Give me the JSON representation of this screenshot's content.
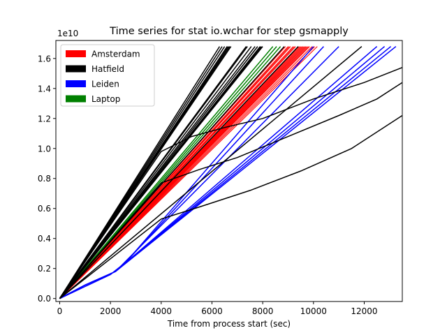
{
  "chart_data": {
    "type": "line",
    "title": "Time series for stat io.wchar for step gsmapply",
    "xlabel": "Time from process start (sec)",
    "ylabel": "",
    "y_scale_note": "1e10",
    "xlim": [
      -150,
      13500
    ],
    "ylim": [
      -0.02,
      1.72
    ],
    "x_ticks": [
      0,
      2000,
      4000,
      6000,
      8000,
      10000,
      12000
    ],
    "x_tick_labels": [
      "0",
      "2000",
      "4000",
      "6000",
      "8000",
      "10000",
      "12000"
    ],
    "y_ticks": [
      0.0,
      0.2,
      0.4,
      0.6,
      0.8,
      1.0,
      1.2,
      1.4,
      1.6
    ],
    "y_tick_labels": [
      "0.0",
      "0.2",
      "0.4",
      "0.6",
      "0.8",
      "1.0",
      "1.2",
      "1.4",
      "1.6"
    ],
    "legend_position": "top-left",
    "legend": [
      {
        "label": "Amsterdam",
        "color": "#ff0000"
      },
      {
        "label": "Hatfield",
        "color": "#000000"
      },
      {
        "label": "Leiden",
        "color": "#0000ff"
      },
      {
        "label": "Laptop",
        "color": "#008000"
      }
    ],
    "groups": [
      {
        "name": "Amsterdam",
        "color": "#ff0000",
        "lines": [
          [
            [
              0,
              0
            ],
            [
              8900,
              1.68
            ]
          ],
          [
            [
              0,
              0
            ],
            [
              9000,
              1.68
            ]
          ],
          [
            [
              0,
              0
            ],
            [
              9100,
              1.68
            ]
          ],
          [
            [
              0,
              0
            ],
            [
              9200,
              1.68
            ]
          ],
          [
            [
              0,
              0
            ],
            [
              9300,
              1.68
            ]
          ],
          [
            [
              0,
              0
            ],
            [
              9400,
              1.68
            ]
          ],
          [
            [
              0,
              0
            ],
            [
              9500,
              1.68
            ]
          ],
          [
            [
              0,
              0
            ],
            [
              9600,
              1.68
            ]
          ],
          [
            [
              0,
              0
            ],
            [
              9700,
              1.68
            ]
          ],
          [
            [
              0,
              0
            ],
            [
              9800,
              1.68
            ]
          ],
          [
            [
              0,
              0
            ],
            [
              9850,
              1.68
            ]
          ],
          [
            [
              0,
              0
            ],
            [
              9950,
              1.68
            ]
          ],
          [
            [
              0,
              0
            ],
            [
              10050,
              1.68
            ]
          ],
          [
            [
              0,
              0
            ],
            [
              10150,
              1.68
            ]
          ],
          [
            [
              0,
              0
            ],
            [
              9250,
              1.68
            ]
          ],
          [
            [
              0,
              0
            ],
            [
              9550,
              1.68
            ]
          ],
          [
            [
              0,
              0
            ],
            [
              9050,
              1.68
            ]
          ],
          [
            [
              0,
              0
            ],
            [
              9650,
              1.68
            ]
          ],
          [
            [
              0,
              0
            ],
            [
              9750,
              1.68
            ]
          ],
          [
            [
              0,
              0
            ],
            [
              9450,
              1.68
            ]
          ]
        ]
      },
      {
        "name": "Laptop",
        "color": "#008000",
        "lines": [
          [
            [
              0,
              0
            ],
            [
              8400,
              1.68
            ]
          ],
          [
            [
              0,
              0
            ],
            [
              8550,
              1.68
            ]
          ],
          [
            [
              0,
              0
            ],
            [
              8700,
              1.68
            ]
          ]
        ]
      },
      {
        "name": "Leiden",
        "color": "#0000ff",
        "lines": [
          [
            [
              0,
              0
            ],
            [
              1000,
              0.08
            ],
            [
              2000,
              0.16
            ],
            [
              2600,
              0.24
            ],
            [
              10000,
              1.68
            ]
          ],
          [
            [
              0,
              0
            ],
            [
              1000,
              0.08
            ],
            [
              2000,
              0.16
            ],
            [
              2600,
              0.24
            ],
            [
              10400,
              1.68
            ]
          ],
          [
            [
              0,
              0
            ],
            [
              1000,
              0.09
            ],
            [
              2200,
              0.18
            ],
            [
              11000,
              1.68
            ]
          ],
          [
            [
              0,
              0
            ],
            [
              1000,
              0.09
            ],
            [
              2200,
              0.18
            ],
            [
              12500,
              1.68
            ]
          ],
          [
            [
              0,
              0
            ],
            [
              1000,
              0.09
            ],
            [
              2200,
              0.18
            ],
            [
              12800,
              1.68
            ]
          ],
          [
            [
              0,
              0
            ],
            [
              1000,
              0.09
            ],
            [
              2200,
              0.18
            ],
            [
              13050,
              1.68
            ]
          ],
          [
            [
              0,
              0
            ],
            [
              1000,
              0.09
            ],
            [
              2200,
              0.18
            ],
            [
              13250,
              1.68
            ]
          ]
        ]
      },
      {
        "name": "Hatfield",
        "color": "#000000",
        "lines": [
          [
            [
              0,
              0
            ],
            [
              6300,
              1.68
            ]
          ],
          [
            [
              0,
              0
            ],
            [
              6400,
              1.68
            ]
          ],
          [
            [
              0,
              0
            ],
            [
              6500,
              1.68
            ]
          ],
          [
            [
              0,
              0
            ],
            [
              6600,
              1.68
            ]
          ],
          [
            [
              0,
              0
            ],
            [
              6650,
              1.68
            ]
          ],
          [
            [
              0,
              0
            ],
            [
              6700,
              1.68
            ]
          ],
          [
            [
              0,
              0
            ],
            [
              6750,
              1.68
            ]
          ],
          [
            [
              0,
              0
            ],
            [
              7350,
              1.68
            ]
          ],
          [
            [
              0,
              0
            ],
            [
              7400,
              1.68
            ]
          ],
          [
            [
              0,
              0
            ],
            [
              7550,
              1.68
            ]
          ],
          [
            [
              0,
              0
            ],
            [
              7700,
              1.68
            ]
          ],
          [
            [
              0,
              0
            ],
            [
              7800,
              1.68
            ]
          ],
          [
            [
              0,
              0
            ],
            [
              7900,
              1.68
            ]
          ],
          [
            [
              0,
              0
            ],
            [
              7950,
              1.68
            ]
          ],
          [
            [
              0,
              0
            ],
            [
              8000,
              1.68
            ]
          ],
          [
            [
              0,
              0
            ],
            [
              8850,
              1.68
            ]
          ],
          [
            [
              0,
              0
            ],
            [
              9400,
              1.68
            ]
          ],
          [
            [
              0,
              0
            ],
            [
              11900,
              1.68
            ]
          ],
          [
            [
              0,
              0
            ],
            [
              4000,
              0.98
            ],
            [
              5200,
              1.08
            ],
            [
              6500,
              1.14
            ],
            [
              8000,
              1.2
            ],
            [
              10000,
              1.33
            ],
            [
              12000,
              1.44
            ],
            [
              13500,
              1.54
            ]
          ],
          [
            [
              0,
              0
            ],
            [
              4000,
              0.77
            ],
            [
              5500,
              0.86
            ],
            [
              7000,
              0.94
            ],
            [
              9000,
              1.08
            ],
            [
              11000,
              1.22
            ],
            [
              12500,
              1.33
            ],
            [
              13500,
              1.44
            ]
          ],
          [
            [
              0,
              0
            ],
            [
              4000,
              0.53
            ],
            [
              5500,
              0.61
            ],
            [
              7500,
              0.72
            ],
            [
              9500,
              0.85
            ],
            [
              11500,
              1.0
            ],
            [
              13500,
              1.22
            ]
          ]
        ]
      }
    ]
  }
}
